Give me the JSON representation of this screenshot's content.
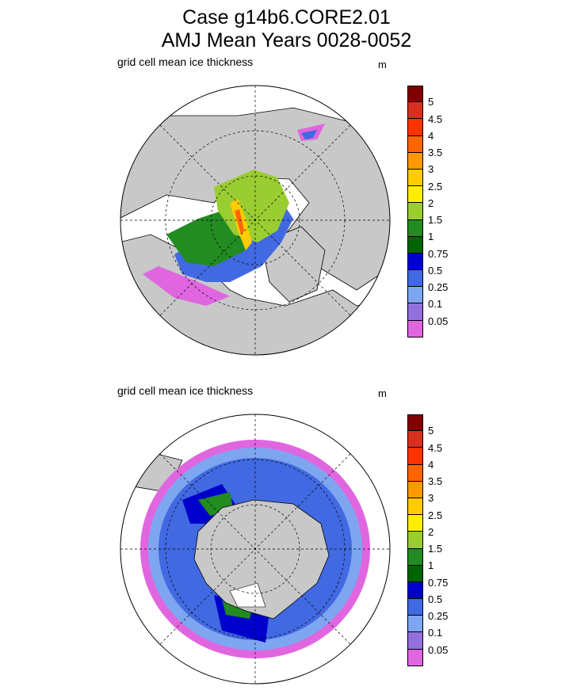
{
  "title": {
    "line1": "Case g14b6.CORE2.01",
    "line2": "AMJ Mean   Years 0028-0052"
  },
  "panels": [
    {
      "id": "north",
      "hemisphere": "Northern",
      "label": "grid cell mean ice thickness",
      "units": "m"
    },
    {
      "id": "south",
      "hemisphere": "Southern",
      "label": "grid cell mean ice thickness",
      "units": "m"
    }
  ],
  "colorbar": {
    "colors": [
      "#7f0000",
      "#d7301f",
      "#ff3300",
      "#ff6600",
      "#ff9900",
      "#ffcc00",
      "#ffee00",
      "#9acd32",
      "#228b22",
      "#006400",
      "#0000cd",
      "#4169e1",
      "#7ea6f0",
      "#9370db",
      "#e066e0"
    ],
    "labels": [
      "5",
      "4.5",
      "4",
      "3.5",
      "3",
      "2.5",
      "2",
      "1.5",
      "1",
      "0.75",
      "0.5",
      "0.25",
      "0.1",
      "0.05"
    ]
  }
}
